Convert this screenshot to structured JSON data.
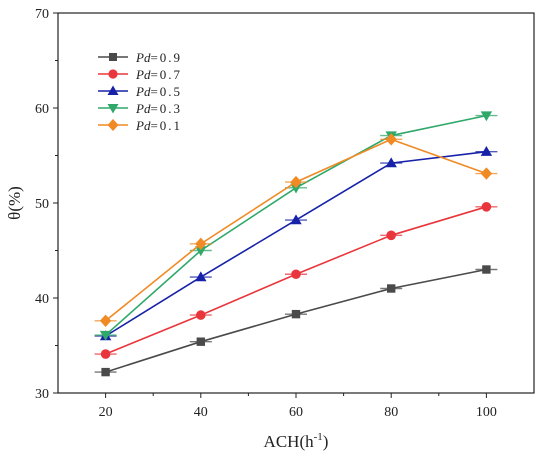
{
  "chart_data": {
    "type": "line",
    "xlabel_main": "ACH(h",
    "xlabel_sup": "-1",
    "xlabel_close": ")",
    "ylabel": "θ(%)",
    "x": [
      20,
      40,
      60,
      80,
      100
    ],
    "xlim": [
      10,
      110
    ],
    "ylim": [
      30,
      70
    ],
    "x_ticks": [
      "20",
      "40",
      "60",
      "80",
      "100"
    ],
    "y_ticks": [
      "30",
      "40",
      "50",
      "60",
      "70"
    ],
    "grid": false,
    "legend_position": "top-left",
    "series": [
      {
        "name_ital": "Pd",
        "name_rest": "=0.9",
        "color": "#4a4a4a",
        "marker": "square",
        "values": [
          32.2,
          35.4,
          38.3,
          41.0,
          43.0
        ]
      },
      {
        "name_ital": "Pd",
        "name_rest": "=0.7",
        "color": "#e8363c",
        "marker": "circle",
        "values": [
          34.1,
          38.2,
          42.5,
          46.6,
          49.6
        ]
      },
      {
        "name_ital": "Pd",
        "name_rest": "=0.5",
        "color": "#1722a8",
        "marker": "triangle-up",
        "values": [
          36.0,
          42.2,
          48.2,
          54.2,
          55.4
        ]
      },
      {
        "name_ital": "Pd",
        "name_rest": "=0.3",
        "color": "#2fa86a",
        "marker": "triangle-down",
        "values": [
          36.1,
          45.0,
          51.6,
          57.1,
          59.2
        ]
      },
      {
        "name_ital": "Pd",
        "name_rest": "=0.1",
        "color": "#f08a24",
        "marker": "diamond",
        "values": [
          37.6,
          45.7,
          52.2,
          56.7,
          53.1
        ]
      }
    ]
  }
}
